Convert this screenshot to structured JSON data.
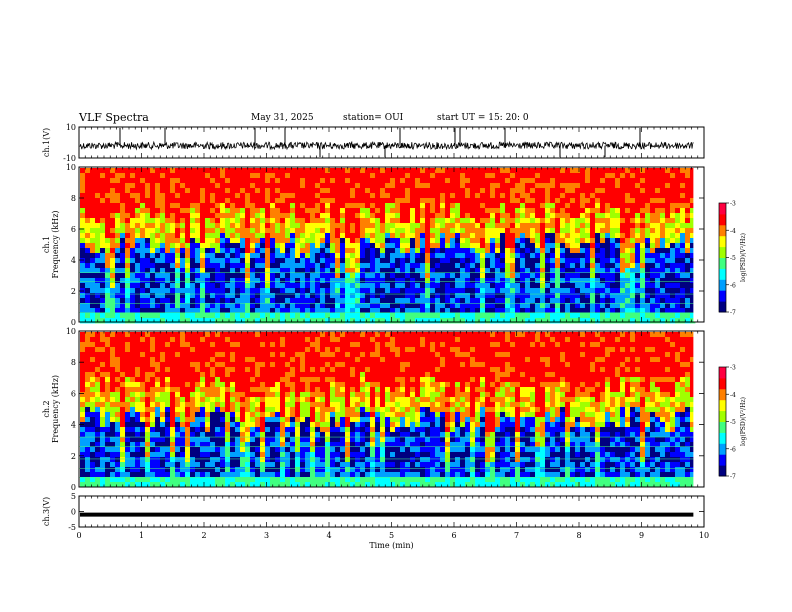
{
  "header": {
    "title": "VLF Spectra",
    "date": "May 31, 2025",
    "station": "station= OUI",
    "start": "start  UT =   15: 20: 0"
  },
  "chart_data": [
    {
      "type": "line",
      "panel": "ch1-waveform",
      "ylabel": "ch.1(V)",
      "ylim": [
        -10,
        10
      ],
      "yticks": [
        "10",
        "-10"
      ],
      "baseline": -2,
      "color": "#000000"
    },
    {
      "type": "heatmap",
      "panel": "ch1-spectrogram",
      "ylabel": "ch.1\nFrequency (kHz)",
      "ylim": [
        0,
        10
      ],
      "yticks": [
        "0",
        "2",
        "4",
        "6",
        "8",
        "10"
      ],
      "colorbar": {
        "label": "log(PSD)(V²/Hz)",
        "range": [
          -7,
          -3
        ],
        "ticks": [
          "-3",
          "-4",
          "-5",
          "-6",
          "-7"
        ]
      },
      "colormap": [
        "#000080",
        "#0000ff",
        "#00a0ff",
        "#00ffff",
        "#40ff80",
        "#a0ff00",
        "#ffff00",
        "#ff8000",
        "#ff0000",
        "#ff0040"
      ]
    },
    {
      "type": "heatmap",
      "panel": "ch2-spectrogram",
      "ylabel": "ch.2\nFrequency (kHz)",
      "ylim": [
        0,
        10
      ],
      "yticks": [
        "0",
        "2",
        "4",
        "6",
        "8",
        "10"
      ],
      "colorbar": {
        "label": "log(PSD)(V²/Hz)",
        "range": [
          -7,
          -3
        ],
        "ticks": [
          "-3",
          "-4",
          "-5",
          "-6",
          "-7"
        ]
      },
      "colormap": [
        "#000080",
        "#0000ff",
        "#00a0ff",
        "#00ffff",
        "#40ff80",
        "#a0ff00",
        "#ffff00",
        "#ff8000",
        "#ff0000",
        "#ff0040"
      ]
    },
    {
      "type": "line",
      "panel": "ch3-waveform",
      "ylabel": "ch.3(V)",
      "ylim": [
        -5,
        5
      ],
      "yticks": [
        "5",
        "0",
        "-5"
      ],
      "value": -1,
      "color": "#000000"
    }
  ],
  "xaxis": {
    "label": "Time (min)",
    "xlim": [
      0,
      10
    ],
    "ticks": [
      "0",
      "1",
      "2",
      "3",
      "4",
      "5",
      "6",
      "7",
      "8",
      "9",
      "10"
    ],
    "data_end": 9.83
  }
}
